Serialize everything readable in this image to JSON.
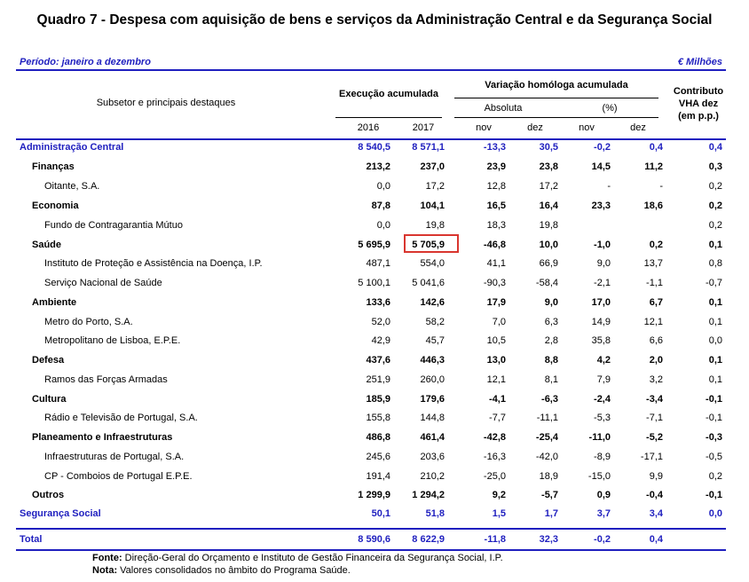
{
  "title": "Quadro 7 - Despesa com aquisição de bens e serviços da Administração Central e da Segurança Social",
  "period": "Período: janeiro a dezembro",
  "unit": "€ Milhões",
  "headers": {
    "subsetor": "Subsetor e principais destaques",
    "execucao": "Execução acumulada",
    "variacao": "Variação homóloga acumulada",
    "absoluta": "Absoluta",
    "pct": "(%)",
    "contributo": [
      "Contributo",
      "VHA dez",
      "(em p.p.)"
    ],
    "y2016": "2016",
    "y2017": "2017",
    "nov1": "nov",
    "dez1": "dez",
    "nov2": "nov",
    "dez2": "dez"
  },
  "rows": [
    {
      "level": 0,
      "label": "Administração Central",
      "v": [
        "8 540,5",
        "8 571,1",
        "-13,3",
        "30,5",
        "-0,2",
        "0,4",
        "0,4"
      ]
    },
    {
      "level": 1,
      "label": "Finanças",
      "v": [
        "213,2",
        "237,0",
        "23,9",
        "23,8",
        "14,5",
        "11,2",
        "0,3"
      ]
    },
    {
      "level": 2,
      "label": "Oitante, S.A.",
      "v": [
        "0,0",
        "17,2",
        "12,8",
        "17,2",
        "-",
        "-",
        "0,2"
      ]
    },
    {
      "level": 1,
      "label": "Economia",
      "v": [
        "87,8",
        "104,1",
        "16,5",
        "16,4",
        "23,3",
        "18,6",
        "0,2"
      ]
    },
    {
      "level": 2,
      "label": "Fundo de Contragarantia Mútuo",
      "v": [
        "0,0",
        "19,8",
        "18,3",
        "19,8",
        "",
        "",
        "0,2"
      ]
    },
    {
      "level": 1,
      "label": "Saúde",
      "v": [
        "5 695,9",
        "5 705,9",
        "-46,8",
        "10,0",
        "-1,0",
        "0,2",
        "0,1"
      ]
    },
    {
      "level": 2,
      "label": "Instituto de Proteção e Assistência na Doença, I.P.",
      "v": [
        "487,1",
        "554,0",
        "41,1",
        "66,9",
        "9,0",
        "13,7",
        "0,8"
      ]
    },
    {
      "level": 2,
      "label": "Serviço Nacional de Saúde",
      "v": [
        "5 100,1",
        "5 041,6",
        "-90,3",
        "-58,4",
        "-2,1",
        "-1,1",
        "-0,7"
      ]
    },
    {
      "level": 1,
      "label": "Ambiente",
      "v": [
        "133,6",
        "142,6",
        "17,9",
        "9,0",
        "17,0",
        "6,7",
        "0,1"
      ]
    },
    {
      "level": 2,
      "label": "Metro do Porto, S.A.",
      "v": [
        "52,0",
        "58,2",
        "7,0",
        "6,3",
        "14,9",
        "12,1",
        "0,1"
      ]
    },
    {
      "level": 2,
      "label": "Metropolitano de Lisboa, E.P.E.",
      "v": [
        "42,9",
        "45,7",
        "10,5",
        "2,8",
        "35,8",
        "6,6",
        "0,0"
      ]
    },
    {
      "level": 1,
      "label": "Defesa",
      "v": [
        "437,6",
        "446,3",
        "13,0",
        "8,8",
        "4,2",
        "2,0",
        "0,1"
      ]
    },
    {
      "level": 2,
      "label": "Ramos das Forças Armadas",
      "v": [
        "251,9",
        "260,0",
        "12,1",
        "8,1",
        "7,9",
        "3,2",
        "0,1"
      ]
    },
    {
      "level": 1,
      "label": "Cultura",
      "v": [
        "185,9",
        "179,6",
        "-4,1",
        "-6,3",
        "-2,4",
        "-3,4",
        "-0,1"
      ]
    },
    {
      "level": 2,
      "label": "Rádio e Televisão de Portugal, S.A.",
      "v": [
        "155,8",
        "144,8",
        "-7,7",
        "-11,1",
        "-5,3",
        "-7,1",
        "-0,1"
      ]
    },
    {
      "level": 1,
      "label": "Planeamento e Infraestruturas",
      "v": [
        "486,8",
        "461,4",
        "-42,8",
        "-25,4",
        "-11,0",
        "-5,2",
        "-0,3"
      ]
    },
    {
      "level": 2,
      "label": "Infraestruturas de Portugal, S.A.",
      "v": [
        "245,6",
        "203,6",
        "-16,3",
        "-42,0",
        "-8,9",
        "-17,1",
        "-0,5"
      ]
    },
    {
      "level": 2,
      "label": "CP - Comboios de Portugal E.P.E.",
      "v": [
        "191,4",
        "210,2",
        "-25,0",
        "18,9",
        "-15,0",
        "9,9",
        "0,2"
      ]
    },
    {
      "level": 1,
      "label": "Outros",
      "v": [
        "1 299,9",
        "1 294,2",
        "9,2",
        "-5,7",
        "0,9",
        "-0,4",
        "-0,1"
      ]
    },
    {
      "level": 0,
      "label": "Segurança Social",
      "v": [
        "50,1",
        "51,8",
        "1,5",
        "1,7",
        "3,7",
        "3,4",
        "0,0"
      ]
    }
  ],
  "total": {
    "label": "Total",
    "v": [
      "8 590,6",
      "8 622,9",
      "-11,8",
      "32,3",
      "-0,2",
      "0,4",
      ""
    ]
  },
  "footnotes": {
    "fonte_label": "Fonte:",
    "fonte_text": " Direção-Geral do Orçamento e Instituto de Gestão Financeira da Segurança Social, I.P.",
    "nota_label": "Nota:",
    "nota_text": " Valores consolidados no âmbito do Programa Saúde."
  },
  "colors": {
    "accent": "#1f1fbf",
    "highlight": "#d9362f"
  }
}
